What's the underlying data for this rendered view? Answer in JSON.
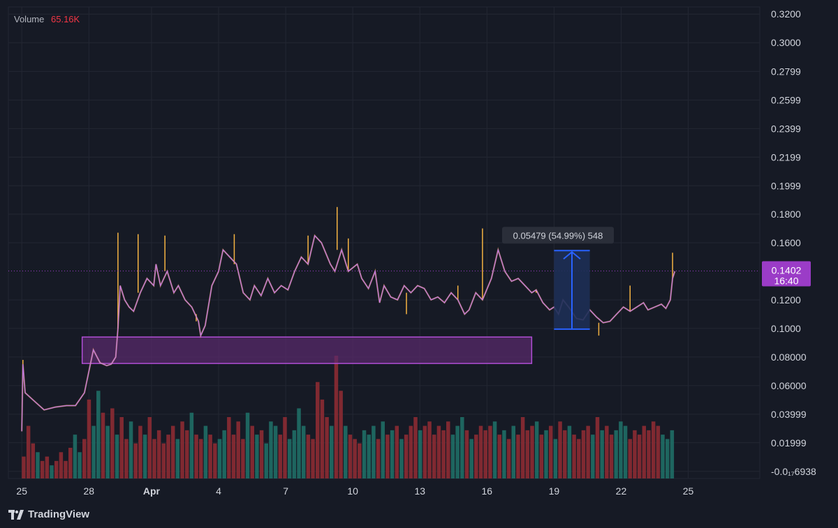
{
  "legend": {
    "label": "Volume",
    "value": "65.16K"
  },
  "brand": {
    "name": "TradingView",
    "logo": "tradingview-logo-icon"
  },
  "colors": {
    "background": "#161a25",
    "grid": "#232733",
    "price_line": "#c278e6",
    "price_wick": "#f5b342",
    "volume_up": "#1f6e66",
    "volume_down": "#8c2b33",
    "zone_fill": "#5b2b6e",
    "zone_border": "#b14fd6",
    "measure_fill": "#1d2f55",
    "measure_border": "#2962ff",
    "price_badge": "#9b3cc7"
  },
  "chart_data": {
    "type": "line",
    "x_ticks": [
      "25",
      "28",
      "Apr",
      "4",
      "7",
      "10",
      "13",
      "16",
      "19",
      "22",
      "25"
    ],
    "y_ticks": [
      "0.3200",
      "0.3000",
      "0.2799",
      "0.2599",
      "0.2399",
      "0.2199",
      "0.1999",
      "0.1800",
      "0.1600",
      "0.1200",
      "0.1000",
      "0.08000",
      "0.06000",
      "0.03999",
      "0.01999",
      "-0.0₁₇6938"
    ],
    "ylim": [
      -0.005,
      0.325
    ],
    "xlim": [
      -0.6,
      33.0
    ],
    "current_price": {
      "price": 0.1402,
      "label": "0.1402",
      "countdown": "16:40"
    },
    "price": {
      "x": [
        0.0,
        0.05,
        0.15,
        0.5,
        1.0,
        1.5,
        2.0,
        2.4,
        2.8,
        3.0,
        3.2,
        3.5,
        3.8,
        4.0,
        4.2,
        4.3,
        4.4,
        4.6,
        4.8,
        5.0,
        5.3,
        5.6,
        5.9,
        6.0,
        6.2,
        6.5,
        6.8,
        7.0,
        7.3,
        7.6,
        7.9,
        8.0,
        8.2,
        8.5,
        8.8,
        9.0,
        9.3,
        9.6,
        9.9,
        10.2,
        10.4,
        10.7,
        11.0,
        11.3,
        11.6,
        11.9,
        12.2,
        12.5,
        12.8,
        13.1,
        13.4,
        13.8,
        14.0,
        14.3,
        14.6,
        15.0,
        15.2,
        15.5,
        15.8,
        16.0,
        16.2,
        16.5,
        16.8,
        17.1,
        17.4,
        17.7,
        18.0,
        18.3,
        18.6,
        18.9,
        19.2,
        19.5,
        19.8,
        20.0,
        20.3,
        20.6,
        21.0,
        21.3,
        21.6,
        21.9,
        22.2,
        22.5,
        22.8,
        23.0,
        23.3,
        23.6,
        23.8,
        24.0,
        24.2,
        24.5,
        24.8,
        25.1,
        25.4,
        25.7,
        26.0,
        26.3,
        26.6,
        26.9,
        27.2,
        27.5,
        27.8,
        28.0,
        28.3,
        28.6,
        28.8,
        29.0,
        29.1,
        29.2
      ],
      "y": [
        0.028,
        0.075,
        0.055,
        0.05,
        0.043,
        0.045,
        0.046,
        0.046,
        0.055,
        0.07,
        0.085,
        0.076,
        0.074,
        0.075,
        0.08,
        0.1,
        0.13,
        0.12,
        0.115,
        0.112,
        0.125,
        0.135,
        0.13,
        0.145,
        0.13,
        0.14,
        0.125,
        0.13,
        0.12,
        0.115,
        0.105,
        0.095,
        0.102,
        0.13,
        0.14,
        0.155,
        0.15,
        0.145,
        0.125,
        0.12,
        0.13,
        0.123,
        0.135,
        0.125,
        0.13,
        0.127,
        0.14,
        0.15,
        0.145,
        0.165,
        0.16,
        0.145,
        0.14,
        0.155,
        0.14,
        0.145,
        0.135,
        0.128,
        0.14,
        0.118,
        0.13,
        0.122,
        0.12,
        0.13,
        0.125,
        0.13,
        0.128,
        0.12,
        0.122,
        0.118,
        0.125,
        0.12,
        0.11,
        0.113,
        0.125,
        0.12,
        0.135,
        0.155,
        0.14,
        0.133,
        0.135,
        0.13,
        0.125,
        0.127,
        0.118,
        0.113,
        0.115,
        0.11,
        0.12,
        0.114,
        0.107,
        0.106,
        0.113,
        0.108,
        0.104,
        0.105,
        0.11,
        0.115,
        0.112,
        0.115,
        0.118,
        0.113,
        0.115,
        0.117,
        0.114,
        0.12,
        0.135,
        0.14
      ]
    },
    "spikes": [
      [
        0.05,
        0.078
      ],
      [
        4.3,
        0.167
      ],
      [
        5.2,
        0.166
      ],
      [
        6.4,
        0.165
      ],
      [
        7.8,
        0.11
      ],
      [
        9.5,
        0.166
      ],
      [
        11.5,
        0.13
      ],
      [
        12.8,
        0.165
      ],
      [
        14.1,
        0.185
      ],
      [
        14.6,
        0.163
      ],
      [
        17.2,
        0.11
      ],
      [
        19.5,
        0.13
      ],
      [
        20.6,
        0.17
      ],
      [
        23.0,
        0.125
      ],
      [
        25.8,
        0.095
      ],
      [
        27.2,
        0.13
      ],
      [
        29.1,
        0.153
      ]
    ],
    "volume": [
      5,
      12,
      8,
      6,
      4,
      5,
      3,
      4,
      6,
      4,
      7,
      10,
      6,
      9,
      18,
      12,
      20,
      15,
      12,
      16,
      10,
      14,
      9,
      13,
      8,
      12,
      10,
      14,
      9,
      11,
      8,
      10,
      12,
      9,
      13,
      11,
      15,
      10,
      9,
      12,
      10,
      8,
      9,
      11,
      14,
      10,
      13,
      9,
      15,
      12,
      10,
      11,
      8,
      13,
      12,
      10,
      14,
      9,
      11,
      16,
      12,
      10,
      9,
      22,
      18,
      14,
      12,
      28,
      20,
      12,
      10,
      9,
      8,
      11,
      10,
      12,
      9,
      13,
      10,
      11,
      12,
      9,
      10,
      12,
      14,
      11,
      12,
      13,
      10,
      12,
      11,
      13,
      10,
      12,
      14,
      11,
      9,
      10,
      12,
      11,
      12,
      13,
      10,
      11,
      9,
      12,
      10,
      14,
      11,
      12,
      13,
      10,
      11,
      12,
      9,
      13,
      11,
      12,
      10,
      9,
      11,
      12,
      10,
      14,
      11,
      12,
      10,
      11,
      13,
      12,
      9,
      11,
      10,
      12,
      11,
      13,
      12,
      10,
      9,
      11
    ],
    "support_zone": {
      "x_start": 2.7,
      "x_end": 22.8,
      "y_low": 0.0755,
      "y_high": 0.094
    },
    "measure": {
      "x_start": 23.8,
      "x_end": 25.4,
      "y_low": 0.0995,
      "y_high": 0.1545,
      "label": "0.05479 (54.99%) 548"
    }
  }
}
